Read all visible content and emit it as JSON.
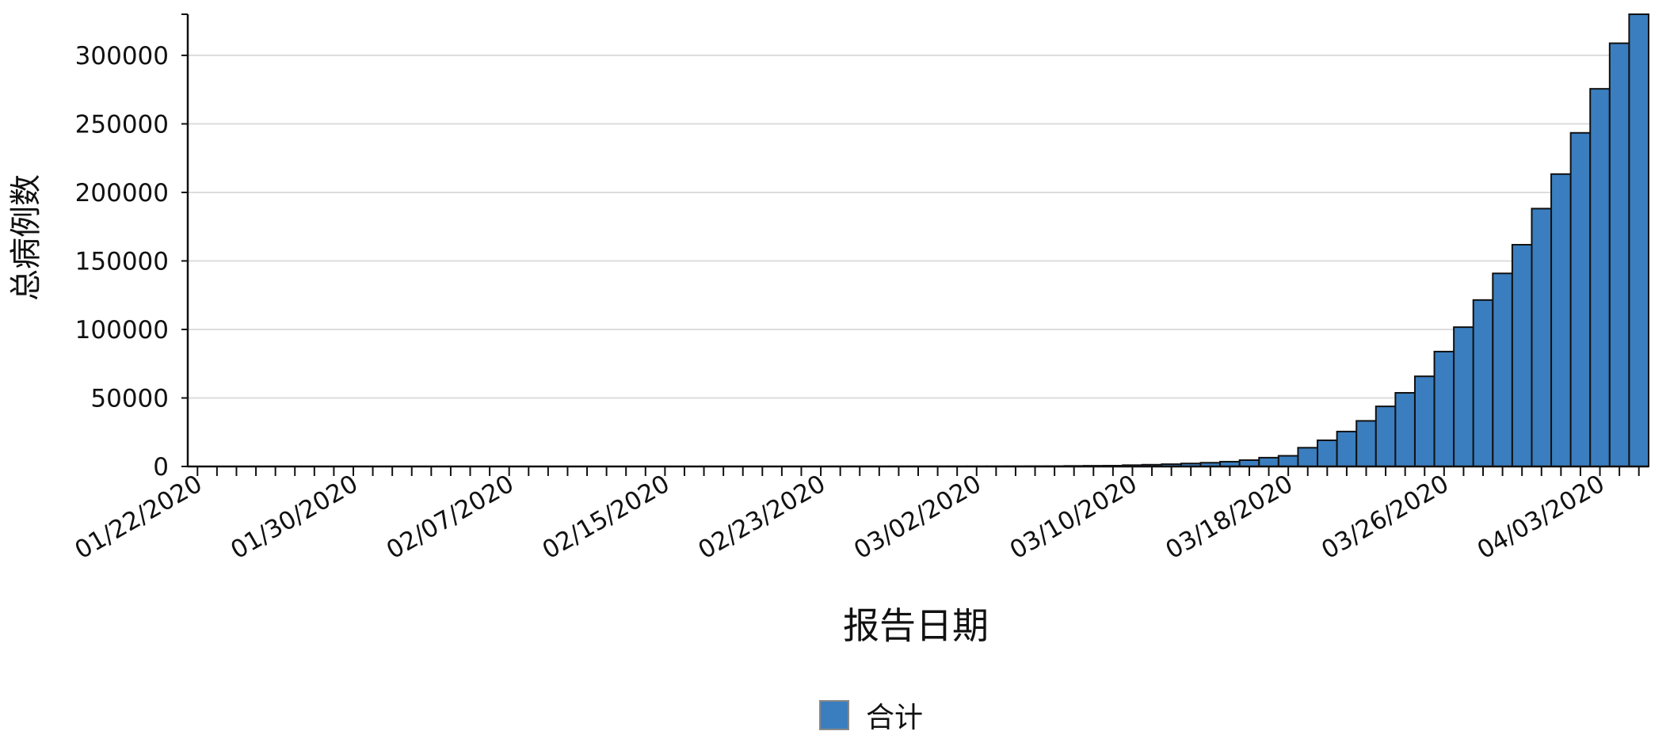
{
  "chart_data": {
    "type": "bar",
    "title": "",
    "xlabel": "报告日期",
    "ylabel": "总病例数",
    "ylim": [
      0,
      330000
    ],
    "yticks": [
      0,
      50000,
      100000,
      150000,
      200000,
      250000,
      300000
    ],
    "ytick_labels": [
      "0",
      "50000",
      "100000",
      "150000",
      "200000",
      "250000",
      "300000"
    ],
    "xtick_labels": [
      "01/22/2020",
      "01/30/2020",
      "02/07/2020",
      "02/15/2020",
      "02/23/2020",
      "03/02/2020",
      "03/10/2020",
      "03/18/2020",
      "03/26/2020",
      "04/03/2020"
    ],
    "xtick_label_every": 8,
    "grid": true,
    "legend_position": "bottom-center",
    "categories": [
      "01/22/2020",
      "01/23/2020",
      "01/24/2020",
      "01/25/2020",
      "01/26/2020",
      "01/27/2020",
      "01/28/2020",
      "01/29/2020",
      "01/30/2020",
      "01/31/2020",
      "02/01/2020",
      "02/02/2020",
      "02/03/2020",
      "02/04/2020",
      "02/05/2020",
      "02/06/2020",
      "02/07/2020",
      "02/08/2020",
      "02/09/2020",
      "02/10/2020",
      "02/11/2020",
      "02/12/2020",
      "02/13/2020",
      "02/14/2020",
      "02/15/2020",
      "02/16/2020",
      "02/17/2020",
      "02/18/2020",
      "02/19/2020",
      "02/20/2020",
      "02/21/2020",
      "02/22/2020",
      "02/23/2020",
      "02/24/2020",
      "02/25/2020",
      "02/26/2020",
      "02/27/2020",
      "02/28/2020",
      "02/29/2020",
      "03/01/2020",
      "03/02/2020",
      "03/03/2020",
      "03/04/2020",
      "03/05/2020",
      "03/06/2020",
      "03/07/2020",
      "03/08/2020",
      "03/09/2020",
      "03/10/2020",
      "03/11/2020",
      "03/12/2020",
      "03/13/2020",
      "03/14/2020",
      "03/15/2020",
      "03/16/2020",
      "03/17/2020",
      "03/18/2020",
      "03/19/2020",
      "03/20/2020",
      "03/21/2020",
      "03/22/2020",
      "03/23/2020",
      "03/24/2020",
      "03/25/2020",
      "03/26/2020",
      "03/27/2020",
      "03/28/2020",
      "03/29/2020",
      "03/30/2020",
      "03/31/2020",
      "04/01/2020",
      "04/02/2020",
      "04/03/2020",
      "04/04/2020",
      "04/05/2020"
    ],
    "series": [
      {
        "name": "合计",
        "color": "#3a7ebf",
        "values": [
          1,
          1,
          2,
          2,
          5,
          5,
          5,
          5,
          5,
          7,
          8,
          8,
          11,
          11,
          11,
          11,
          11,
          11,
          11,
          11,
          12,
          12,
          13,
          13,
          13,
          13,
          13,
          13,
          13,
          13,
          15,
          15,
          15,
          51,
          51,
          57,
          58,
          60,
          68,
          74,
          98,
          118,
          149,
          217,
          262,
          402,
          518,
          583,
          959,
          1281,
          1663,
          2179,
          2726,
          3499,
          4632,
          6421,
          7783,
          13677,
          19100,
          25489,
          33276,
          43847,
          53740,
          65778,
          83836,
          101657,
          121478,
          140886,
          161807,
          188172,
          213372,
          243453,
          275586,
          308850,
          332000
        ]
      }
    ]
  }
}
